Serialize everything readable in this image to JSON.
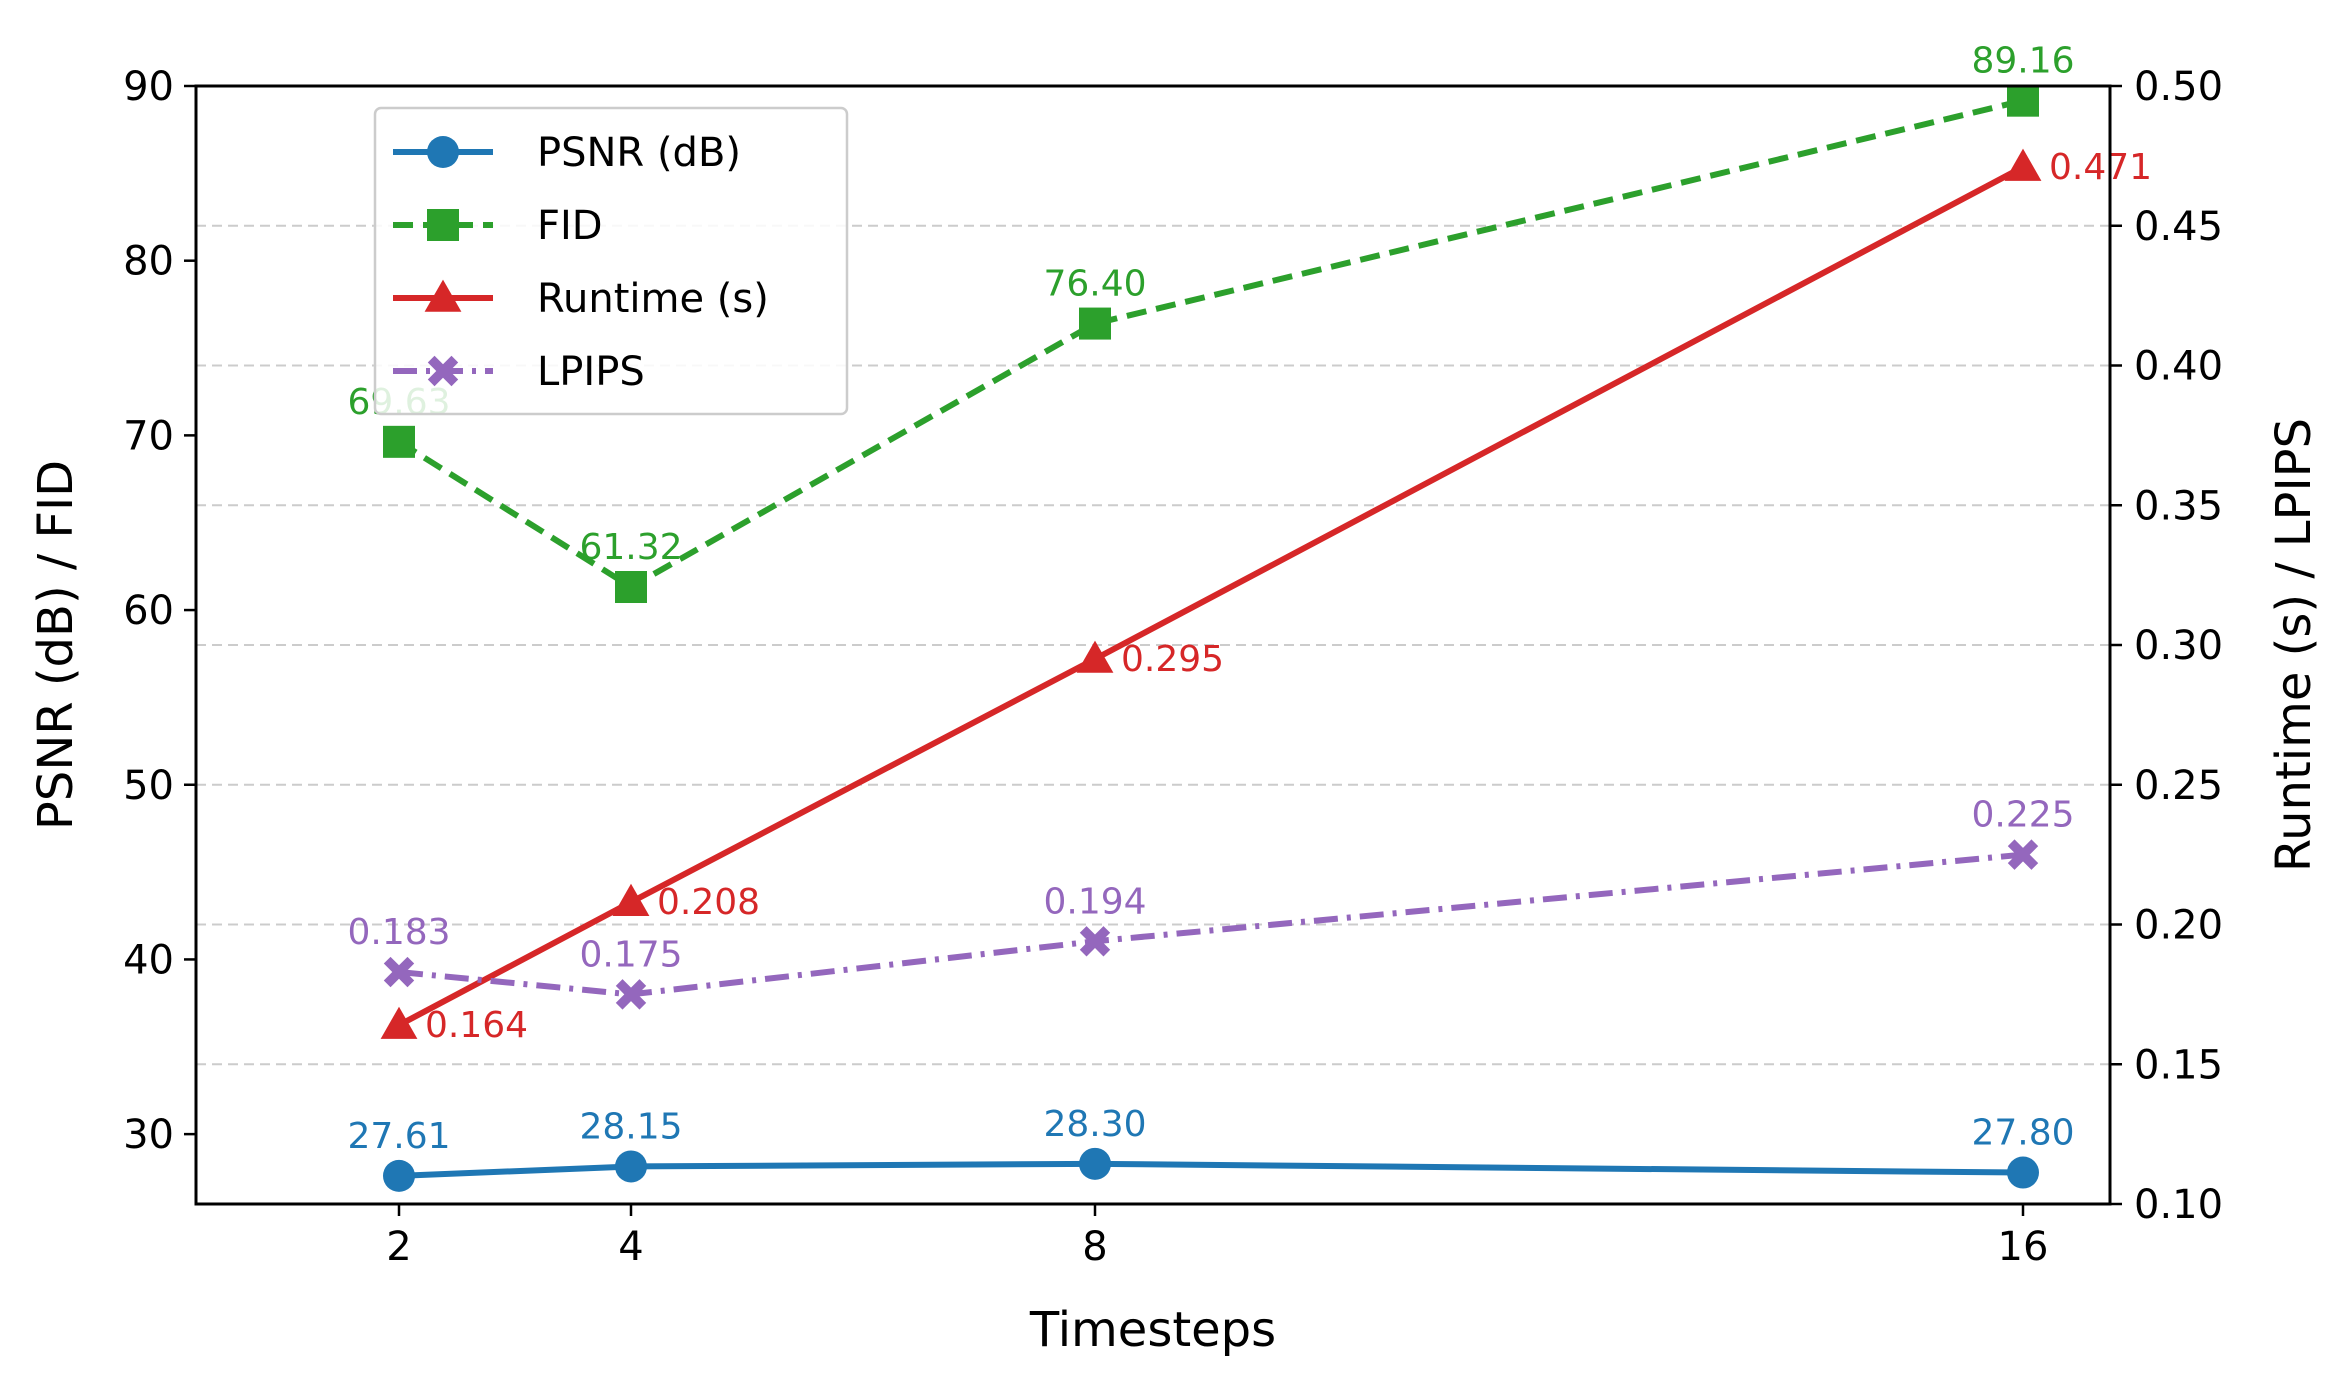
{
  "chart_data": {
    "type": "line",
    "x": [
      2,
      4,
      8,
      16
    ],
    "xlabel": "Timesteps",
    "ylabel_left": "PSNR (dB) / FID",
    "ylabel_right": "Runtime (s) / LPIPS",
    "xlim": [
      0.25,
      16.75
    ],
    "ylim_left": [
      26,
      90
    ],
    "ylim_right": [
      0.1,
      0.5
    ],
    "xticks": [
      "2",
      "4",
      "8",
      "16"
    ],
    "yticks_left": [
      "30",
      "40",
      "50",
      "60",
      "70",
      "80",
      "90"
    ],
    "yticks_right": [
      "0.10",
      "0.15",
      "0.20",
      "0.25",
      "0.30",
      "0.35",
      "0.40",
      "0.45",
      "0.50"
    ],
    "grid": "horizontal dashed at right-axis ticks",
    "legend_position": "upper-left",
    "series": [
      {
        "name": "PSNR (dB)",
        "axis": "left",
        "color": "#1f77b4",
        "marker": "circle",
        "linestyle": "solid",
        "values": [
          27.61,
          28.15,
          28.3,
          27.8
        ],
        "labels": [
          "27.61",
          "28.15",
          "28.30",
          "27.80"
        ]
      },
      {
        "name": "FID",
        "axis": "left",
        "color": "#2ca02c",
        "marker": "square",
        "linestyle": "dashed",
        "values": [
          69.63,
          61.32,
          76.4,
          89.16
        ],
        "labels": [
          "69.63",
          "61.32",
          "76.40",
          "89.16"
        ]
      },
      {
        "name": "Runtime (s)",
        "axis": "right",
        "color": "#d62728",
        "marker": "triangle",
        "linestyle": "solid",
        "values": [
          0.164,
          0.208,
          0.295,
          0.471
        ],
        "labels": [
          "0.164",
          "0.208",
          "0.295",
          "0.471"
        ]
      },
      {
        "name": "LPIPS",
        "axis": "right",
        "color": "#9467bd",
        "marker": "x-filled",
        "linestyle": "dashdot",
        "values": [
          0.183,
          0.175,
          0.194,
          0.225
        ],
        "labels": [
          "0.183",
          "0.175",
          "0.194",
          "0.225"
        ]
      }
    ]
  }
}
